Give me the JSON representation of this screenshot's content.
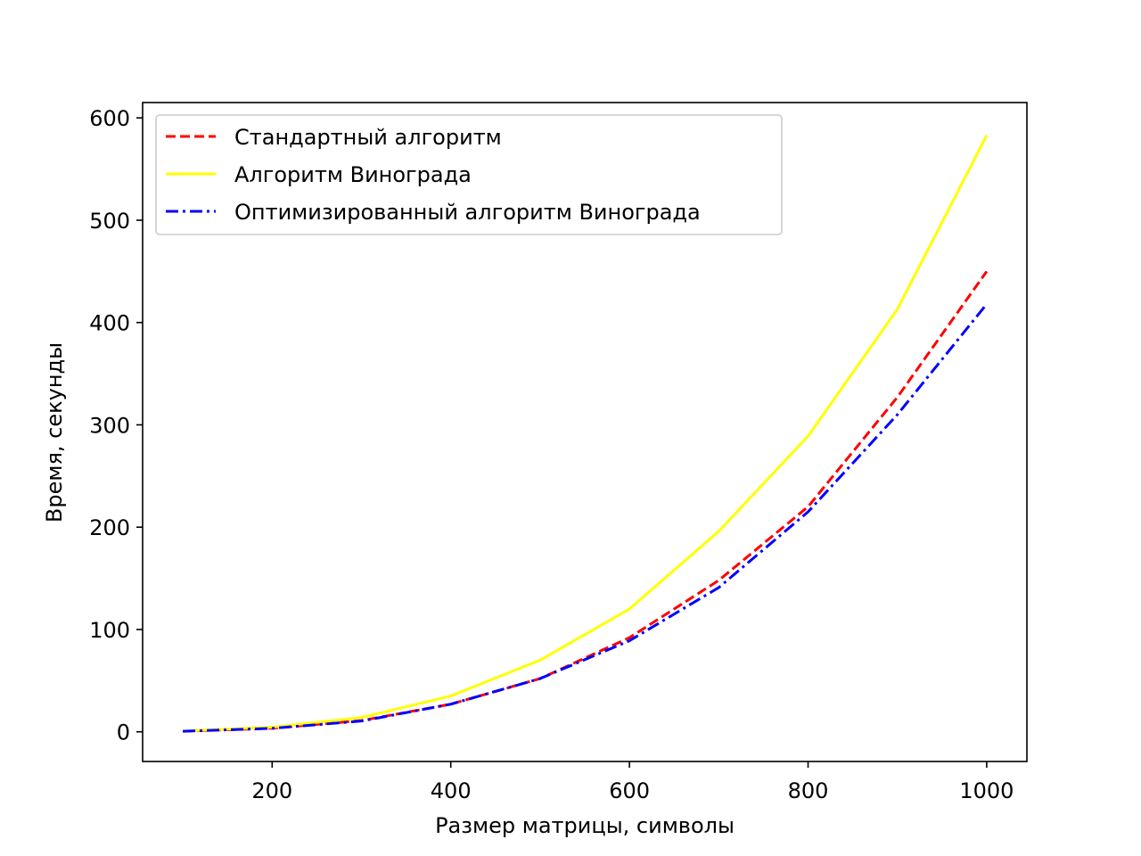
{
  "chart_data": {
    "type": "line",
    "title": "",
    "xlabel": "Размер матрицы, символы",
    "ylabel": "Время, секунды",
    "xlim": [
      55,
      1045
    ],
    "ylim": [
      -29,
      615
    ],
    "xticks": [
      200,
      400,
      600,
      800,
      1000
    ],
    "yticks": [
      0,
      100,
      200,
      300,
      400,
      500,
      600
    ],
    "grid": false,
    "legend_position": "upper-left",
    "x": [
      100,
      200,
      300,
      400,
      500,
      600,
      700,
      800,
      900,
      1000
    ],
    "series": [
      {
        "name": "Стандартный алгоритм",
        "color": "#ff0000",
        "style": "dashed",
        "values": [
          0.5,
          3.5,
          11,
          27,
          52,
          92,
          148,
          220,
          327,
          450
        ]
      },
      {
        "name": "Алгоритм Винограда",
        "color": "#ffff00",
        "style": "solid",
        "values": [
          0.7,
          4.5,
          14,
          35,
          70,
          120,
          196,
          289,
          413,
          583
        ]
      },
      {
        "name": "Оптимизированный алгоритм Винограда",
        "color": "#0000ff",
        "style": "dashdot",
        "values": [
          0.5,
          3.4,
          10.5,
          27,
          52,
          89,
          141,
          215,
          310,
          418
        ]
      }
    ]
  }
}
